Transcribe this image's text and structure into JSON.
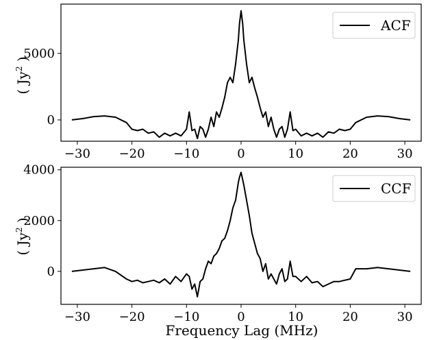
{
  "figure": {
    "xlabel": "Frequency Lag (MHz)"
  },
  "colors": {
    "line": "#000000",
    "axes": "#000000",
    "background": "#ffffff",
    "legend_border": "#cccccc"
  },
  "chart_data": [
    {
      "type": "line",
      "panel": "top",
      "ylabel": "( Jy",
      "ylabel_superscript": "2",
      "ylabel_close": " )",
      "xlim": [
        -33,
        33
      ],
      "ylim": [
        -1600,
        8700
      ],
      "xticks": [
        -30,
        -20,
        -10,
        0,
        10,
        20,
        30
      ],
      "xtick_labels": [
        "−30",
        "−20",
        "−10",
        "0",
        "10",
        "20",
        "30"
      ],
      "yticks": [
        0,
        5000
      ],
      "ytick_labels": [
        "0",
        "5000"
      ],
      "legend": {
        "placement": "top-right",
        "entries": [
          "ACF"
        ]
      },
      "series": [
        {
          "name": "ACF",
          "x": [
            -31,
            -29,
            -27,
            -25,
            -23,
            -21,
            -20,
            -19,
            -18,
            -17,
            -16,
            -15,
            -14,
            -13,
            -12,
            -11,
            -10,
            -9.5,
            -9,
            -8.5,
            -8,
            -7.5,
            -7,
            -6.5,
            -6,
            -5.5,
            -5,
            -4.5,
            -4,
            -3.5,
            -3,
            -2.5,
            -2,
            -1.5,
            -1,
            -0.5,
            -0.3,
            0,
            0.3,
            0.5,
            1,
            1.5,
            2,
            2.5,
            3,
            3.5,
            4,
            4.5,
            5,
            5.5,
            6,
            6.5,
            7,
            7.5,
            8,
            8.5,
            9,
            9.5,
            10,
            11,
            12,
            13,
            14,
            15,
            16,
            17,
            18,
            19,
            20,
            21,
            23,
            25,
            27,
            29,
            31
          ],
          "y": [
            0,
            100,
            250,
            300,
            200,
            -200,
            -700,
            -800,
            -700,
            -1000,
            -900,
            -1300,
            -1000,
            -1200,
            -1000,
            -1200,
            -700,
            600,
            -800,
            -700,
            -1400,
            -500,
            -700,
            -1300,
            -700,
            200,
            -500,
            600,
            200,
            900,
            1700,
            2800,
            3200,
            2800,
            4200,
            6000,
            7200,
            8200,
            7200,
            6000,
            4200,
            2800,
            3200,
            2400,
            1700,
            900,
            200,
            600,
            -500,
            200,
            -700,
            -1300,
            -700,
            -500,
            -1300,
            -700,
            600,
            -800,
            -700,
            -1200,
            -1000,
            -1200,
            -1000,
            -1300,
            -900,
            -1000,
            -700,
            -800,
            -700,
            -200,
            200,
            300,
            250,
            100,
            0
          ]
        }
      ]
    },
    {
      "type": "line",
      "panel": "bottom",
      "ylabel": "( Jy",
      "ylabel_superscript": "2",
      "ylabel_close": " )",
      "xlim": [
        -33,
        33
      ],
      "ylim": [
        -1300,
        4100
      ],
      "xticks": [
        -30,
        -20,
        -10,
        0,
        10,
        20,
        30
      ],
      "xtick_labels": [
        "−30",
        "−20",
        "−10",
        "0",
        "10",
        "20",
        "30"
      ],
      "yticks": [
        0,
        2000,
        4000
      ],
      "ytick_labels": [
        "0",
        "2000",
        "4000"
      ],
      "legend": {
        "placement": "top-right",
        "entries": [
          "CCF"
        ]
      },
      "series": [
        {
          "name": "CCF",
          "x": [
            -31,
            -29,
            -27,
            -25,
            -23,
            -21,
            -20,
            -19,
            -18,
            -17,
            -16,
            -15,
            -14,
            -13,
            -12,
            -11,
            -10,
            -9.5,
            -9,
            -8.5,
            -8,
            -7.5,
            -7,
            -6.5,
            -6,
            -5.5,
            -5,
            -4.5,
            -4,
            -3.5,
            -3,
            -2.5,
            -2,
            -1.5,
            -1,
            -0.5,
            -0.3,
            0,
            0.3,
            0.5,
            1,
            1.5,
            2,
            2.5,
            3,
            3.5,
            4,
            4.5,
            5,
            5.5,
            6,
            6.5,
            7,
            7.5,
            8,
            8.5,
            9,
            9.5,
            10,
            11,
            12,
            13,
            14,
            15,
            16,
            17,
            18,
            19,
            20,
            21,
            23,
            25,
            27,
            29,
            31
          ],
          "y": [
            0,
            50,
            100,
            150,
            0,
            -300,
            -400,
            -350,
            -450,
            -400,
            -350,
            -450,
            -300,
            -500,
            -200,
            -400,
            -100,
            -200,
            -700,
            -500,
            -1000,
            -400,
            -300,
            100,
            400,
            300,
            600,
            700,
            900,
            1200,
            1300,
            1600,
            2000,
            2500,
            2800,
            3500,
            3700,
            3900,
            3600,
            3400,
            2800,
            2200,
            1500,
            1100,
            700,
            500,
            0,
            300,
            -300,
            -100,
            -300,
            -500,
            -100,
            100,
            -400,
            -300,
            400,
            -200,
            -200,
            -400,
            -200,
            -450,
            -400,
            -600,
            -500,
            -400,
            -400,
            -350,
            -300,
            100,
            100,
            150,
            100,
            50,
            0
          ]
        }
      ]
    }
  ]
}
